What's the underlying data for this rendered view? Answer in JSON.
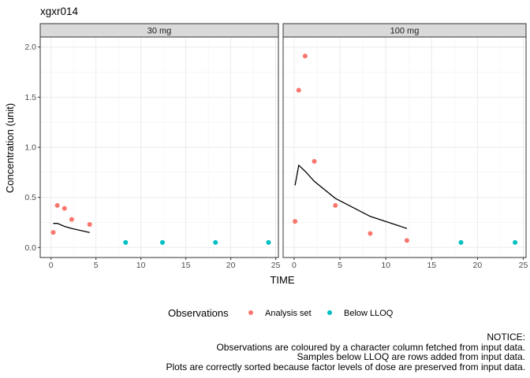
{
  "chart_data": {
    "type": "scatter",
    "title": "xgxr014",
    "xlabel": "TIME",
    "ylabel": "Concentration (unit)",
    "xlim": [
      -1.2,
      25.3
    ],
    "ylim": [
      -0.1,
      2.1
    ],
    "xticks": [
      0,
      5,
      10,
      15,
      20,
      25
    ],
    "yticks": [
      0.0,
      0.5,
      1.0,
      1.5,
      2.0
    ],
    "ytick_labels": [
      "0.0",
      "0.5",
      "1.0",
      "1.5",
      "2.0"
    ],
    "grid": true,
    "legend": {
      "title": "Observations",
      "placement": "bottom",
      "entries": [
        {
          "label": "Analysis set",
          "color": "#F8766D"
        },
        {
          "label": "Below LLOQ",
          "color": "#00BFC4"
        }
      ]
    },
    "line_color": "#000000",
    "panels": [
      {
        "strip": "30 mg",
        "points": [
          {
            "x": 0.25,
            "y": 0.15,
            "group": "Analysis set"
          },
          {
            "x": 0.7,
            "y": 0.42,
            "group": "Analysis set"
          },
          {
            "x": 1.5,
            "y": 0.39,
            "group": "Analysis set"
          },
          {
            "x": 2.3,
            "y": 0.28,
            "group": "Analysis set"
          },
          {
            "x": 4.3,
            "y": 0.23,
            "group": "Analysis set"
          },
          {
            "x": 8.3,
            "y": 0.05,
            "group": "Below LLOQ"
          },
          {
            "x": 12.4,
            "y": 0.05,
            "group": "Below LLOQ"
          },
          {
            "x": 18.3,
            "y": 0.05,
            "group": "Below LLOQ"
          },
          {
            "x": 24.2,
            "y": 0.05,
            "group": "Below LLOQ"
          }
        ],
        "line": {
          "x": [
            0.25,
            0.7,
            1.5,
            2.3,
            4.3
          ],
          "y": [
            0.24,
            0.24,
            0.21,
            0.19,
            0.15
          ]
        }
      },
      {
        "strip": "100 mg",
        "points": [
          {
            "x": 0.1,
            "y": 0.26,
            "group": "Analysis set"
          },
          {
            "x": 0.5,
            "y": 1.57,
            "group": "Analysis set"
          },
          {
            "x": 1.2,
            "y": 1.91,
            "group": "Analysis set"
          },
          {
            "x": 2.2,
            "y": 0.86,
            "group": "Analysis set"
          },
          {
            "x": 4.5,
            "y": 0.42,
            "group": "Analysis set"
          },
          {
            "x": 8.3,
            "y": 0.14,
            "group": "Analysis set"
          },
          {
            "x": 12.3,
            "y": 0.07,
            "group": "Analysis set"
          },
          {
            "x": 18.2,
            "y": 0.05,
            "group": "Below LLOQ"
          },
          {
            "x": 24.1,
            "y": 0.05,
            "group": "Below LLOQ"
          }
        ],
        "line": {
          "x": [
            0.1,
            0.5,
            1.2,
            2.2,
            4.5,
            8.3,
            12.3
          ],
          "y": [
            0.62,
            0.82,
            0.76,
            0.66,
            0.49,
            0.31,
            0.19
          ]
        }
      }
    ]
  },
  "notice": [
    "NOTICE:",
    "Observations are coloured by a character column fetched from input data.",
    "Samples below LLOQ are rows added from input data.",
    "Plots are correctly sorted because factor levels of dose are preserved from input data."
  ]
}
